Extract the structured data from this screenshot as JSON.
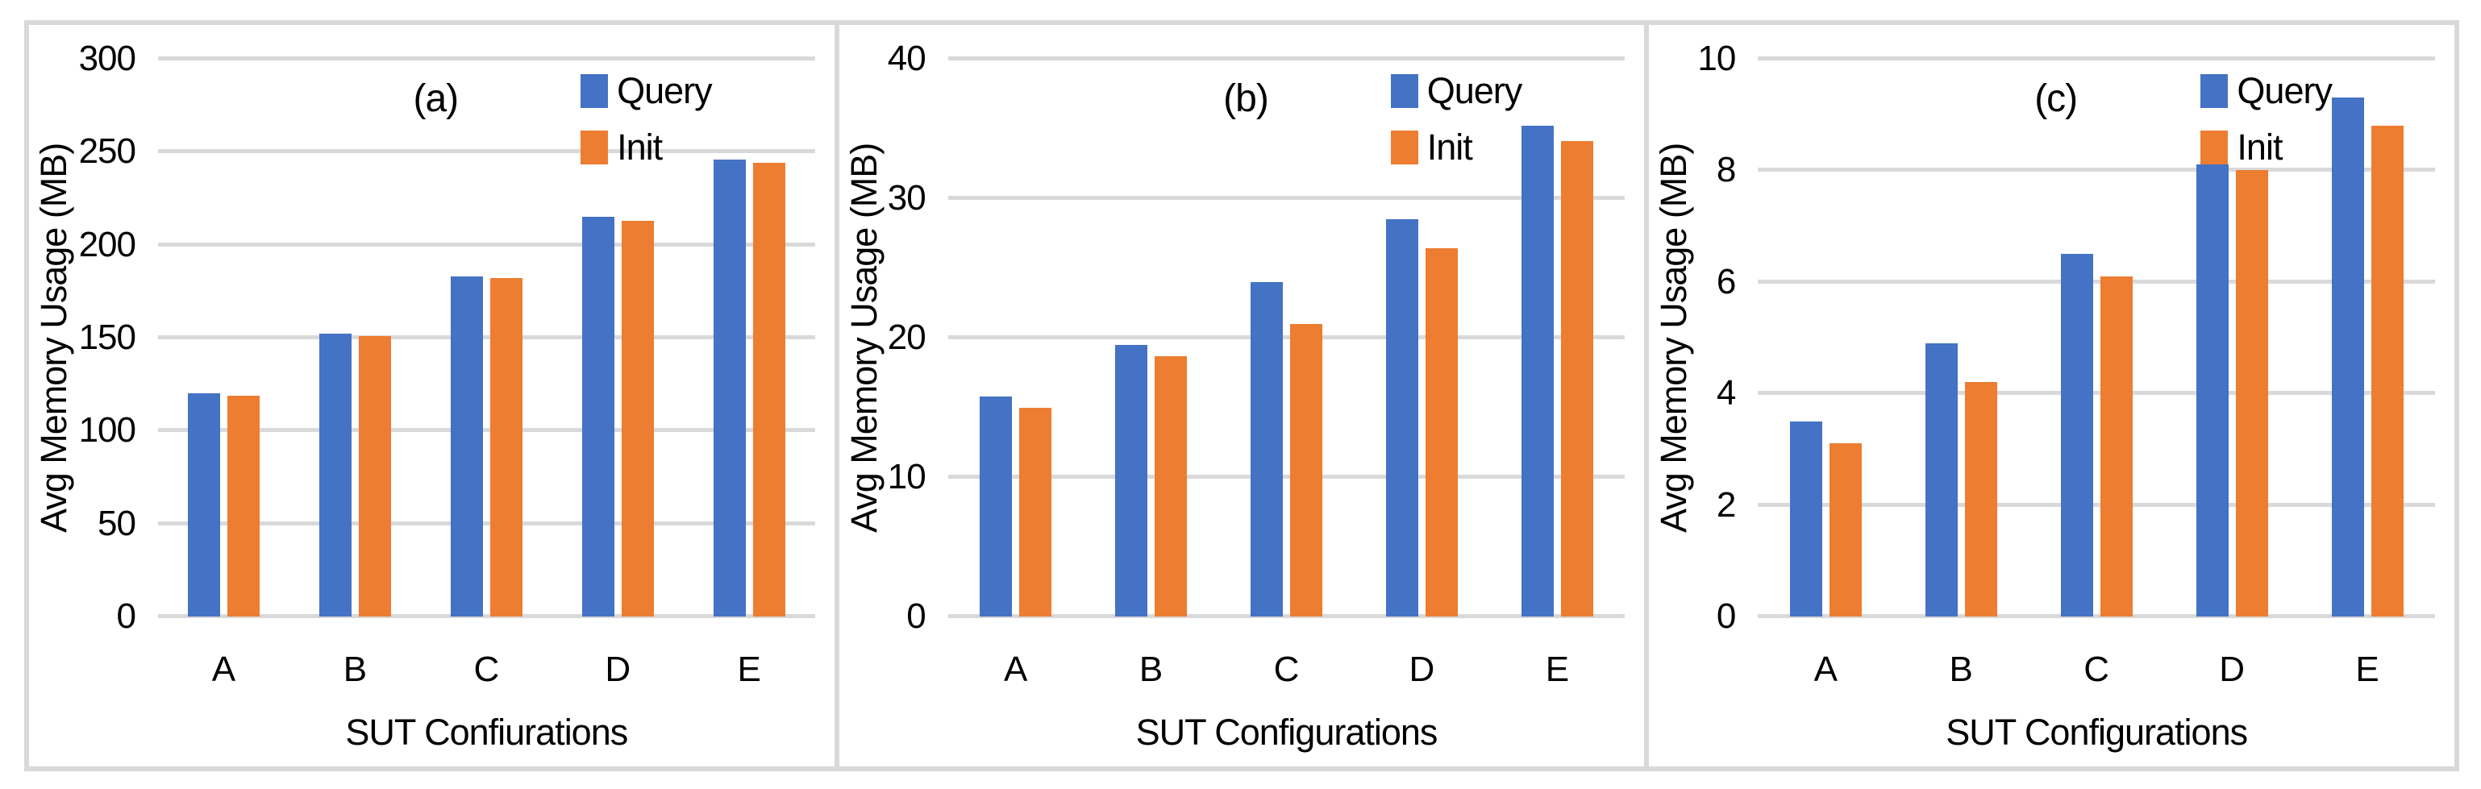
{
  "figure": {
    "background": "#FFFFFF",
    "frame_border_color": "#D9D9D9",
    "gridline_color": "#D9D9D9",
    "text_color": "#000000",
    "series_colors": {
      "query": "#4472C4",
      "init": "#ED7D31"
    },
    "legend": {
      "query_label": "Query",
      "init_label": "Init"
    }
  },
  "chart_data": [
    {
      "type": "bar",
      "panel_label": "(a)",
      "title": "",
      "xlabel": "SUT Confiurations",
      "ylabel": "Avg Memory Usage (MB)",
      "categories": [
        "A",
        "B",
        "C",
        "D",
        "E"
      ],
      "series": [
        {
          "name": "Query",
          "color": "#4472C4",
          "values": [
            120,
            152,
            183,
            215,
            246
          ]
        },
        {
          "name": "Init",
          "color": "#ED7D31",
          "values": [
            119,
            151,
            182,
            213,
            244
          ]
        }
      ],
      "ylim": [
        0,
        300
      ],
      "yticks": [
        0,
        50,
        100,
        150,
        200,
        250,
        300
      ],
      "grid": true,
      "legend_position": "top-right"
    },
    {
      "type": "bar",
      "panel_label": "(b)",
      "title": "",
      "xlabel": "SUT Configurations",
      "ylabel": "Avg Memory Usage (MB)",
      "categories": [
        "A",
        "B",
        "C",
        "D",
        "E"
      ],
      "series": [
        {
          "name": "Query",
          "color": "#4472C4",
          "values": [
            15.8,
            19.5,
            24,
            28.5,
            35.2
          ]
        },
        {
          "name": "Init",
          "color": "#ED7D31",
          "values": [
            15,
            18.7,
            21,
            26.4,
            34.1
          ]
        }
      ],
      "ylim": [
        0,
        40
      ],
      "yticks": [
        0,
        10,
        20,
        30,
        40
      ],
      "grid": true,
      "legend_position": "top-right"
    },
    {
      "type": "bar",
      "panel_label": "(c)",
      "title": "",
      "xlabel": "SUT Configurations",
      "ylabel": "Avg Memory Usage (MB)",
      "categories": [
        "A",
        "B",
        "C",
        "D",
        "E"
      ],
      "series": [
        {
          "name": "Query",
          "color": "#4472C4",
          "values": [
            3.5,
            4.9,
            6.5,
            8.1,
            9.3
          ]
        },
        {
          "name": "Init",
          "color": "#ED7D31",
          "values": [
            3.1,
            4.2,
            6.1,
            8,
            8.8
          ]
        }
      ],
      "ylim": [
        0,
        10
      ],
      "yticks": [
        0,
        2,
        4,
        6,
        8,
        10
      ],
      "grid": true,
      "legend_position": "top-right"
    }
  ]
}
